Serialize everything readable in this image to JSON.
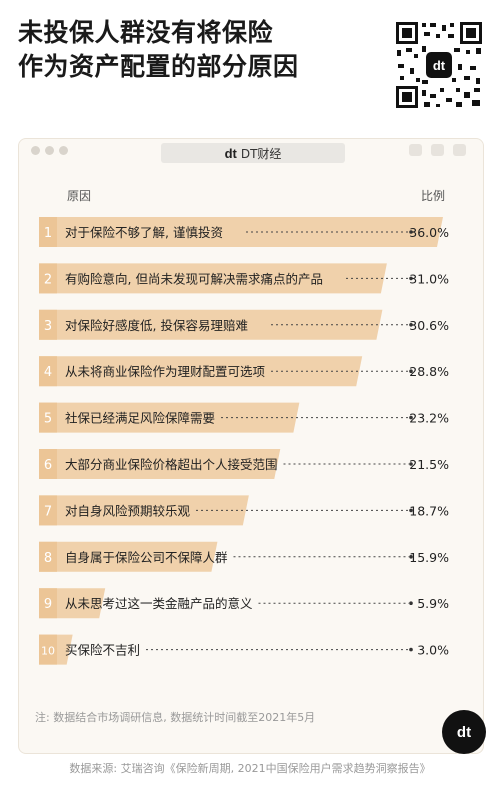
{
  "title_line1": "未投保人群没有将保险",
  "title_line2": "作为资产配置的部分原因",
  "window": {
    "tab_label": "DT财经",
    "tab_logo": "dt"
  },
  "header": {
    "reason": "原因",
    "ratio": "比例"
  },
  "colors": {
    "bar": "#f0d1ab",
    "number_bg": "#f0d1ab",
    "panel_bg": "#fbf8f3",
    "brand": "#111111"
  },
  "chart_data": {
    "type": "bar",
    "orientation": "horizontal",
    "categories": [
      "对于保险不够了解, 谨慎投资",
      "有购险意向, 但尚未发现可解决需求痛点的产品",
      "对保险好感度低, 投保容易理赔难",
      "从未将商业保险作为理财配置可选项",
      "社保已经满足风险保障需要",
      "大部分商业保险价格超出个人接受范围",
      "对自身风险预期较乐观",
      "自身属于保险公司不保障人群",
      "从未思考过这一类金融产品的意义",
      "买保险不吉利"
    ],
    "ranks": [
      "1",
      "2",
      "3",
      "4",
      "5",
      "6",
      "7",
      "8",
      "9",
      "10"
    ],
    "values": [
      36.0,
      31.0,
      30.6,
      28.8,
      23.2,
      21.5,
      18.7,
      15.9,
      5.9,
      3.0
    ],
    "labels": [
      "36.0%",
      "31.0%",
      "30.6%",
      "28.8%",
      "23.2%",
      "21.5%",
      "18.7%",
      "15.9%",
      "5.9%",
      "3.0%"
    ],
    "unit": "%",
    "xlim": [
      0,
      36.0
    ]
  },
  "footnote": "注: 数据结合市场调研信息, 数据统计时间截至2021年5月",
  "source": "数据来源: 艾瑞咨询《保险新周期, 2021中国保险用户需求趋势洞察报告》",
  "brand_mark": "dt"
}
